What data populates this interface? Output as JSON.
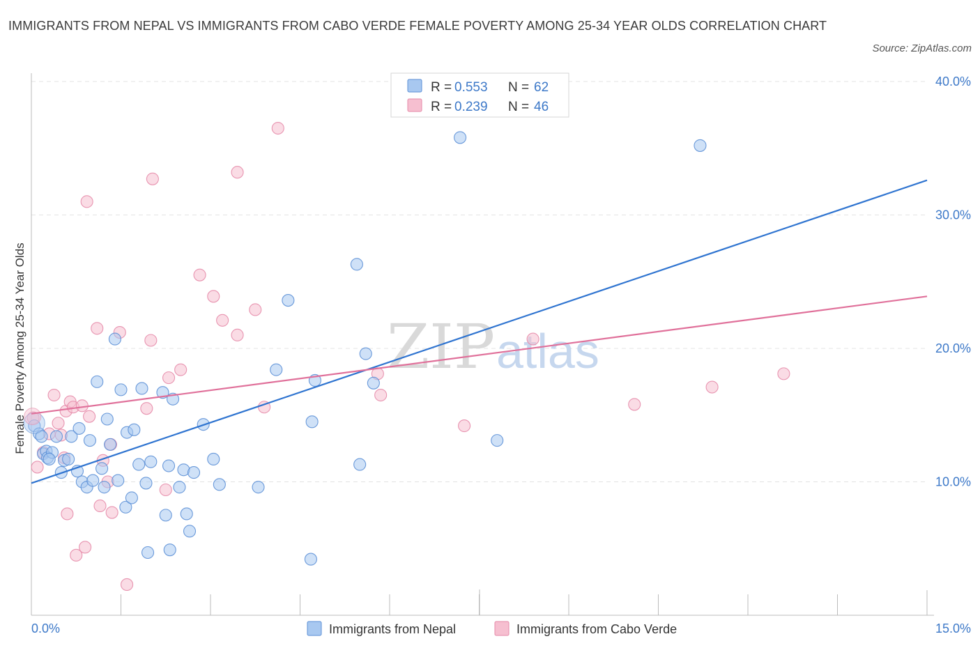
{
  "header": {
    "title": "IMMIGRANTS FROM NEPAL VS IMMIGRANTS FROM CABO VERDE FEMALE POVERTY AMONG 25-34 YEAR OLDS CORRELATION CHART",
    "source": "Source: ZipAtlas.com"
  },
  "watermark": {
    "zip": "ZIP",
    "atlas": "atlas"
  },
  "colors": {
    "nepal_fill": "#a8c8f0",
    "nepal_stroke": "#5b8fd6",
    "nepal_line": "#2f74d0",
    "caboverde_fill": "#f6bfd0",
    "caboverde_stroke": "#e58aa8",
    "caboverde_line": "#e0709a",
    "grid": "#e3e3e3",
    "tick_text": "#3c78c8"
  },
  "legend": {
    "r_label": "R =",
    "n_label": "N =",
    "rows": [
      {
        "series": "Immigrants from Nepal",
        "r": "0.553",
        "n": "62"
      },
      {
        "series": "Immigrants from Cabo Verde",
        "r": "0.239",
        "n": "46"
      }
    ]
  },
  "chart_data": {
    "type": "scatter",
    "title": "IMMIGRANTS FROM NEPAL VS IMMIGRANTS FROM CABO VERDE FEMALE POVERTY AMONG 25-34 YEAR OLDS CORRELATION CHART",
    "xlabel": "",
    "ylabel": "Female Poverty Among 25-34 Year Olds",
    "xlim": [
      0,
      15
    ],
    "ylim": [
      0,
      40
    ],
    "x_tick_labels": [
      "0.0%",
      "15.0%"
    ],
    "y_ticks": [
      10,
      20,
      30,
      40
    ],
    "y_tick_labels": [
      "10.0%",
      "20.0%",
      "30.0%",
      "40.0%"
    ],
    "grid": true,
    "legend_position": "top-center",
    "series": [
      {
        "name": "Immigrants from Nepal",
        "r": 0.553,
        "n": 62,
        "trend": {
          "x0": 0,
          "y0": 9.9,
          "x1": 15,
          "y1": 32.6
        },
        "points": [
          [
            0.05,
            14.2
          ],
          [
            0.13,
            13.6
          ],
          [
            0.17,
            13.4
          ],
          [
            0.2,
            12.1
          ],
          [
            0.25,
            12.3
          ],
          [
            0.27,
            11.8
          ],
          [
            0.35,
            12.2
          ],
          [
            0.42,
            13.4
          ],
          [
            0.5,
            10.7
          ],
          [
            0.55,
            11.6
          ],
          [
            0.62,
            11.7
          ],
          [
            0.67,
            13.4
          ],
          [
            0.77,
            10.8
          ],
          [
            0.8,
            14.0
          ],
          [
            0.85,
            10.0
          ],
          [
            0.93,
            9.6
          ],
          [
            0.98,
            13.1
          ],
          [
            1.03,
            10.1
          ],
          [
            1.1,
            17.5
          ],
          [
            1.18,
            11.0
          ],
          [
            1.22,
            9.6
          ],
          [
            1.27,
            14.7
          ],
          [
            1.32,
            12.8
          ],
          [
            1.4,
            20.7
          ],
          [
            1.45,
            10.1
          ],
          [
            1.5,
            16.9
          ],
          [
            1.58,
            8.1
          ],
          [
            1.6,
            13.7
          ],
          [
            1.68,
            8.8
          ],
          [
            1.72,
            13.9
          ],
          [
            1.8,
            11.3
          ],
          [
            1.85,
            17.0
          ],
          [
            1.92,
            9.9
          ],
          [
            1.95,
            4.7
          ],
          [
            2.0,
            11.5
          ],
          [
            2.2,
            16.7
          ],
          [
            2.25,
            7.5
          ],
          [
            2.3,
            11.2
          ],
          [
            2.32,
            4.9
          ],
          [
            2.37,
            16.2
          ],
          [
            2.48,
            9.6
          ],
          [
            2.55,
            10.9
          ],
          [
            2.6,
            7.6
          ],
          [
            2.65,
            6.3
          ],
          [
            2.72,
            10.7
          ],
          [
            2.88,
            14.3
          ],
          [
            3.05,
            11.7
          ],
          [
            3.15,
            9.8
          ],
          [
            3.8,
            9.6
          ],
          [
            4.1,
            18.4
          ],
          [
            4.3,
            23.6
          ],
          [
            4.68,
            4.2
          ],
          [
            4.7,
            14.5
          ],
          [
            4.75,
            17.6
          ],
          [
            5.45,
            26.3
          ],
          [
            5.5,
            11.3
          ],
          [
            5.6,
            19.6
          ],
          [
            5.73,
            17.4
          ],
          [
            7.18,
            35.8
          ],
          [
            7.8,
            13.1
          ],
          [
            11.2,
            35.2
          ],
          [
            0.3,
            11.7
          ]
        ]
      },
      {
        "name": "Immigrants from Cabo Verde",
        "r": 0.239,
        "n": 46,
        "trend": {
          "x0": 0,
          "y0": 15.1,
          "x1": 15,
          "y1": 23.9
        },
        "points": [
          [
            0.03,
            14.8
          ],
          [
            0.1,
            11.1
          ],
          [
            0.2,
            12.2
          ],
          [
            0.3,
            13.6
          ],
          [
            0.38,
            16.5
          ],
          [
            0.45,
            14.4
          ],
          [
            0.5,
            13.5
          ],
          [
            0.55,
            11.8
          ],
          [
            0.58,
            15.3
          ],
          [
            0.6,
            7.6
          ],
          [
            0.65,
            16.0
          ],
          [
            0.7,
            15.6
          ],
          [
            0.75,
            4.5
          ],
          [
            0.85,
            15.7
          ],
          [
            0.9,
            5.1
          ],
          [
            0.93,
            31.0
          ],
          [
            0.97,
            14.9
          ],
          [
            1.1,
            21.5
          ],
          [
            1.15,
            8.2
          ],
          [
            1.2,
            11.6
          ],
          [
            1.28,
            10.0
          ],
          [
            1.33,
            12.8
          ],
          [
            1.35,
            7.7
          ],
          [
            1.48,
            21.2
          ],
          [
            1.6,
            2.3
          ],
          [
            1.93,
            15.5
          ],
          [
            2.0,
            20.6
          ],
          [
            2.03,
            32.7
          ],
          [
            2.25,
            9.4
          ],
          [
            2.3,
            17.8
          ],
          [
            2.5,
            18.4
          ],
          [
            2.82,
            25.5
          ],
          [
            3.05,
            23.9
          ],
          [
            3.2,
            22.1
          ],
          [
            3.45,
            33.2
          ],
          [
            3.45,
            21.0
          ],
          [
            3.75,
            22.9
          ],
          [
            3.9,
            15.6
          ],
          [
            4.13,
            36.5
          ],
          [
            5.8,
            18.1
          ],
          [
            5.85,
            16.5
          ],
          [
            7.25,
            14.2
          ],
          [
            8.4,
            20.7
          ],
          [
            10.1,
            15.8
          ],
          [
            11.4,
            17.1
          ],
          [
            12.6,
            18.1
          ]
        ]
      }
    ]
  }
}
